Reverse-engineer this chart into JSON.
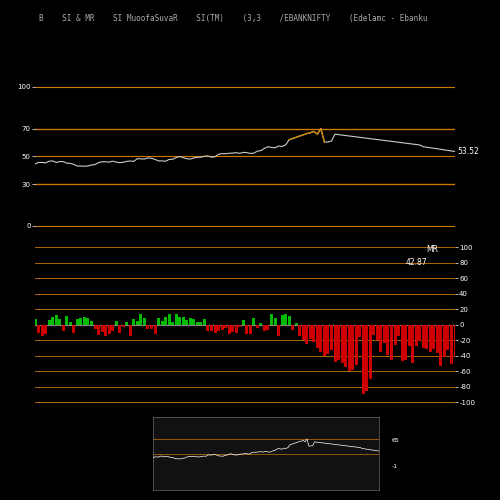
{
  "background_color": "#000000",
  "title_text": "B    SI & MR    SI MuoofaSuvaR    SI(TM)    (3,3    /EBANKNIFTY    (Edelamc - Ebanku",
  "title_fontsize": 5.5,
  "title_color": "#aaaaaa",
  "rsi_label": "53.52",
  "mrsi_label": "42.87",
  "mrsi_text": "MR",
  "orange_line_color": "#cc7700",
  "rsi_line_color": "#cccccc",
  "orange_highlight_color": "#cc8800",
  "green_bar_color": "#00bb00",
  "red_bar_color": "#cc0000",
  "zero_line_color": "#888888",
  "rsi_hlines": [
    100,
    70,
    50,
    30,
    0
  ],
  "mrsi_hlines": [
    100,
    80,
    60,
    40,
    20,
    0,
    -20,
    -40,
    -60,
    -80,
    -100
  ],
  "rsi_ylim": [
    -10,
    120
  ],
  "mrsi_ylim": [
    -110,
    110
  ],
  "label_fontsize": 5.0,
  "annotation_fontsize": 5.5,
  "mini_border_color": "#555555"
}
